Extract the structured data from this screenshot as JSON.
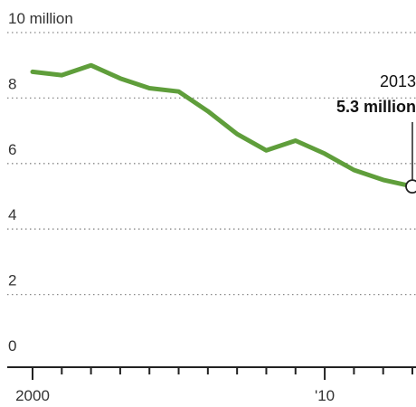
{
  "chart_data": {
    "type": "line",
    "x": [
      2000,
      2001,
      2002,
      2003,
      2004,
      2005,
      2006,
      2007,
      2008,
      2009,
      2010,
      2011,
      2012,
      2013
    ],
    "series": [
      {
        "values": [
          8.8,
          8.7,
          9.0,
          8.6,
          8.3,
          8.2,
          7.6,
          6.9,
          6.4,
          6.7,
          6.3,
          5.8,
          5.5,
          5.3
        ]
      }
    ],
    "xlim": [
      2000,
      2013
    ],
    "ylim": [
      0,
      10
    ],
    "y_ticks": [
      0,
      2,
      4,
      6,
      8,
      10
    ],
    "y_tick_labels": [
      "0",
      "2",
      "4",
      "6",
      "8",
      "10 million"
    ],
    "x_tick_labels": [
      "2000",
      "'10"
    ],
    "annotation": {
      "year": "2013",
      "value": "5.3 million",
      "x": 2013,
      "y": 5.3
    },
    "grid": "horizontal dotted",
    "colors": {
      "line": "#5f9e3b",
      "grid": "#888888",
      "axis": "#222222",
      "text": "#333333"
    }
  }
}
